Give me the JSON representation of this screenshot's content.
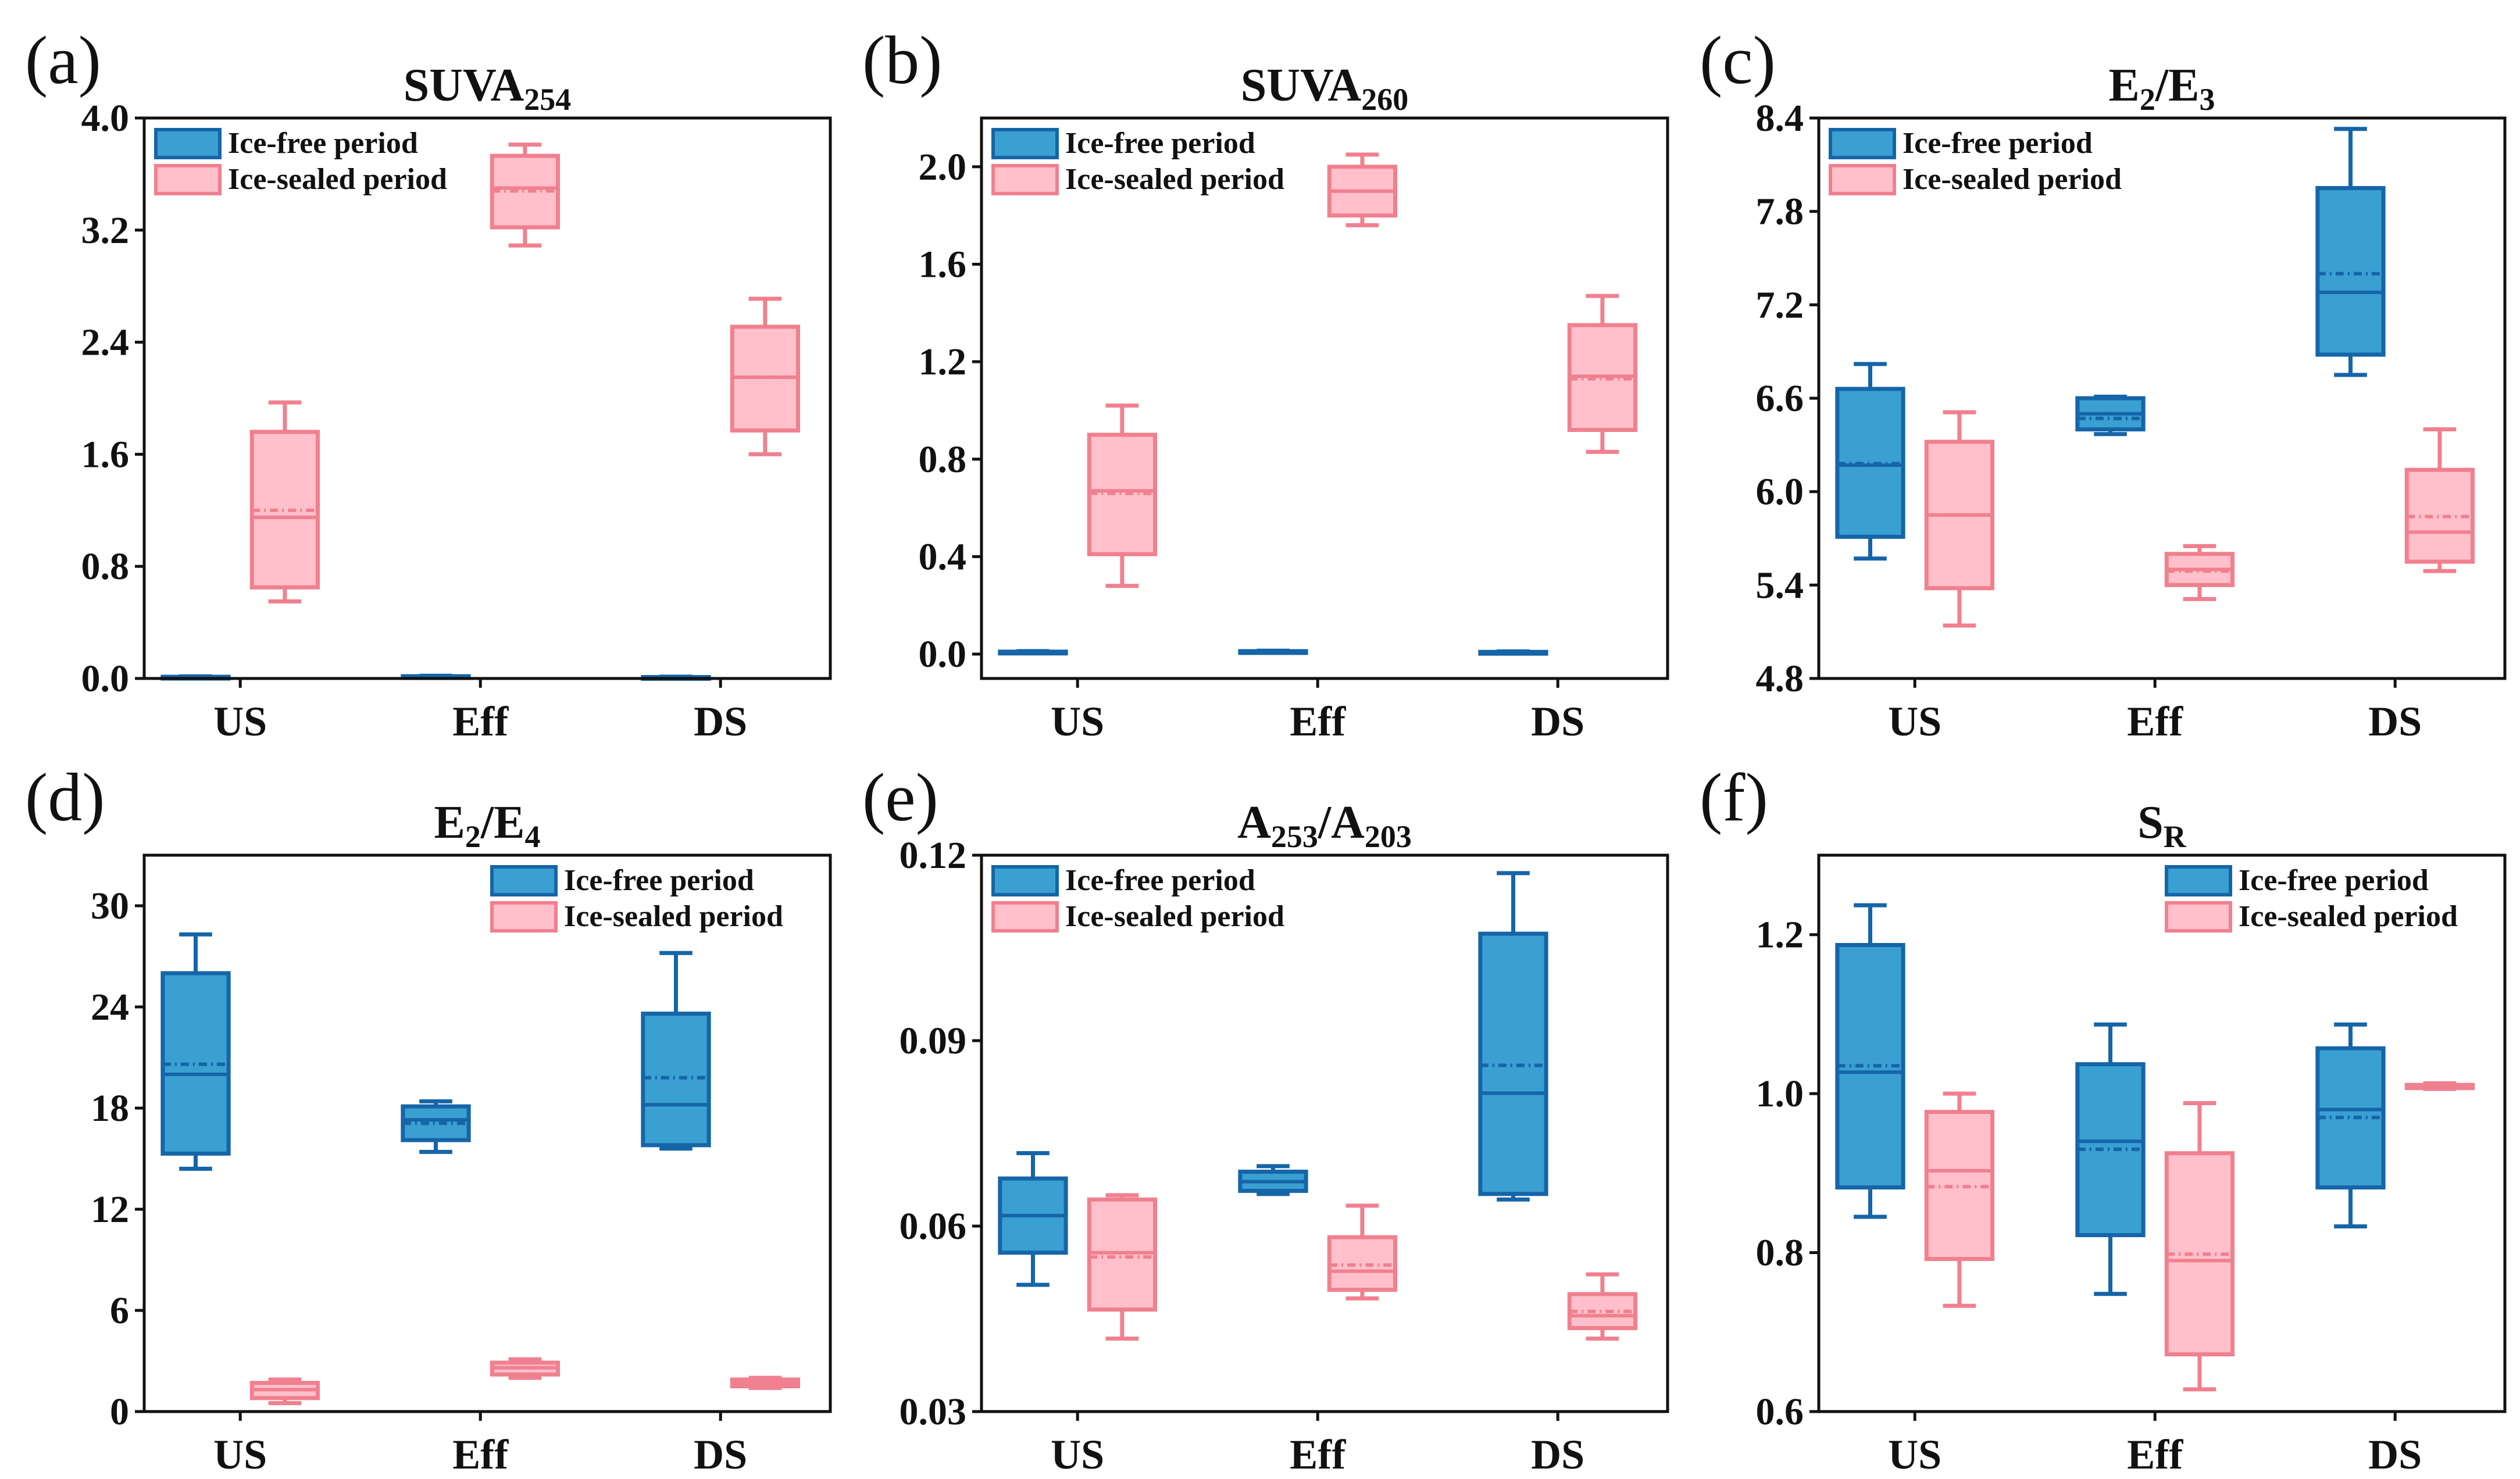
{
  "colors": {
    "ice_free_edge": "#1565a8",
    "ice_free_fill": "#3a9fd1",
    "ice_sealed_edge": "#f0808f",
    "ice_sealed_fill": "#ffc0cb"
  },
  "chart_data": [
    {
      "type": "box",
      "panel": "(a)",
      "title": "SUVA",
      "title_sub": "254",
      "title_sep": "",
      "title_b": "",
      "title_b_sub": "",
      "categories": [
        "US",
        "Eff",
        "DS"
      ],
      "ylim": [
        0,
        4.0
      ],
      "yticks": [
        "0.0",
        "0.8",
        "1.6",
        "2.4",
        "3.2",
        "4.0"
      ],
      "legend_position": "top-left",
      "series": [
        {
          "name": "Ice-free period",
          "boxes": [
            {
              "whislo": 0.005,
              "q1": 0.008,
              "med": 0.01,
              "mean": 0.01,
              "q3": 0.012,
              "whishi": 0.015
            },
            {
              "whislo": 0.008,
              "q1": 0.011,
              "med": 0.013,
              "mean": 0.013,
              "q3": 0.016,
              "whishi": 0.019
            },
            {
              "whislo": 0.004,
              "q1": 0.006,
              "med": 0.008,
              "mean": 0.008,
              "q3": 0.01,
              "whishi": 0.013
            }
          ]
        },
        {
          "name": "Ice-sealed period",
          "boxes": [
            {
              "whislo": 0.55,
              "q1": 0.65,
              "med": 1.15,
              "mean": 1.2,
              "q3": 1.76,
              "whishi": 1.97
            },
            {
              "whislo": 3.09,
              "q1": 3.22,
              "med": 3.5,
              "mean": 3.48,
              "q3": 3.73,
              "whishi": 3.81
            },
            {
              "whislo": 1.6,
              "q1": 1.77,
              "med": 2.15,
              "mean": 2.15,
              "q3": 2.51,
              "whishi": 2.71
            }
          ]
        }
      ]
    },
    {
      "type": "box",
      "panel": "(b)",
      "title": "SUVA",
      "title_sub": "260",
      "title_sep": "",
      "title_b": "",
      "title_b_sub": "",
      "categories": [
        "US",
        "Eff",
        "DS"
      ],
      "ylim": [
        -0.1,
        2.2
      ],
      "yticks": [
        "0.0",
        "0.4",
        "0.8",
        "1.2",
        "1.6",
        "2.0"
      ],
      "legend_position": "top-left",
      "series": [
        {
          "name": "Ice-free period",
          "boxes": [
            {
              "whislo": 0.004,
              "q1": 0.006,
              "med": 0.008,
              "mean": 0.008,
              "q3": 0.01,
              "whishi": 0.012
            },
            {
              "whislo": 0.006,
              "q1": 0.008,
              "med": 0.01,
              "mean": 0.01,
              "q3": 0.012,
              "whishi": 0.014
            },
            {
              "whislo": 0.003,
              "q1": 0.005,
              "med": 0.007,
              "mean": 0.007,
              "q3": 0.009,
              "whishi": 0.011
            }
          ]
        },
        {
          "name": "Ice-sealed period",
          "boxes": [
            {
              "whislo": 0.28,
              "q1": 0.41,
              "med": 0.67,
              "mean": 0.66,
              "q3": 0.9,
              "whishi": 1.02
            },
            {
              "whislo": 1.76,
              "q1": 1.8,
              "med": 1.9,
              "mean": 1.9,
              "q3": 2.0,
              "whishi": 2.05
            },
            {
              "whislo": 0.83,
              "q1": 0.92,
              "med": 1.14,
              "mean": 1.13,
              "q3": 1.35,
              "whishi": 1.47
            }
          ]
        }
      ]
    },
    {
      "type": "box",
      "panel": "(c)",
      "title": "E",
      "title_sub": "2",
      "title_sep": "/",
      "title_b": "E",
      "title_b_sub": "3",
      "categories": [
        "US",
        "Eff",
        "DS"
      ],
      "ylim": [
        4.8,
        8.4
      ],
      "yticks": [
        "4.8",
        "5.4",
        "6.0",
        "6.6",
        "7.2",
        "7.8",
        "8.4"
      ],
      "legend_position": "top-left",
      "series": [
        {
          "name": "Ice-free period",
          "boxes": [
            {
              "whislo": 5.57,
              "q1": 5.71,
              "med": 6.17,
              "mean": 6.18,
              "q3": 6.66,
              "whishi": 6.82
            },
            {
              "whislo": 6.37,
              "q1": 6.4,
              "med": 6.5,
              "mean": 6.47,
              "q3": 6.6,
              "whishi": 6.61
            },
            {
              "whislo": 6.75,
              "q1": 6.88,
              "med": 7.28,
              "mean": 7.4,
              "q3": 7.95,
              "whishi": 8.33
            }
          ]
        },
        {
          "name": "Ice-sealed period",
          "boxes": [
            {
              "whislo": 5.14,
              "q1": 5.38,
              "med": 5.85,
              "mean": 5.85,
              "q3": 6.32,
              "whishi": 6.51
            },
            {
              "whislo": 5.31,
              "q1": 5.4,
              "med": 5.5,
              "mean": 5.49,
              "q3": 5.6,
              "whishi": 5.65
            },
            {
              "whislo": 5.49,
              "q1": 5.55,
              "med": 5.74,
              "mean": 5.84,
              "q3": 6.14,
              "whishi": 6.4
            }
          ]
        }
      ]
    },
    {
      "type": "box",
      "panel": "(d)",
      "title": "E",
      "title_sub": "2",
      "title_sep": "/",
      "title_b": "E",
      "title_b_sub": "4",
      "categories": [
        "US",
        "Eff",
        "DS"
      ],
      "ylim": [
        0,
        33
      ],
      "yticks": [
        "0",
        "6",
        "12",
        "18",
        "24",
        "30"
      ],
      "legend_position": "top-right",
      "series": [
        {
          "name": "Ice-free period",
          "boxes": [
            {
              "whislo": 14.4,
              "q1": 15.3,
              "med": 20.0,
              "mean": 20.6,
              "q3": 26.0,
              "whishi": 28.3
            },
            {
              "whislo": 15.4,
              "q1": 16.1,
              "med": 17.3,
              "mean": 17.1,
              "q3": 18.1,
              "whishi": 18.4
            },
            {
              "whislo": 15.6,
              "q1": 15.8,
              "med": 18.2,
              "mean": 19.8,
              "q3": 23.6,
              "whishi": 27.2
            }
          ]
        },
        {
          "name": "Ice-sealed period",
          "boxes": [
            {
              "whislo": 0.5,
              "q1": 0.8,
              "med": 1.3,
              "mean": 1.3,
              "q3": 1.7,
              "whishi": 1.9
            },
            {
              "whislo": 2.0,
              "q1": 2.2,
              "med": 2.6,
              "mean": 2.6,
              "q3": 2.9,
              "whishi": 3.1
            },
            {
              "whislo": 1.4,
              "q1": 1.5,
              "med": 1.7,
              "mean": 1.7,
              "q3": 1.9,
              "whishi": 2.0
            }
          ]
        }
      ]
    },
    {
      "type": "box",
      "panel": "(e)",
      "title": "A",
      "title_sub": "253",
      "title_sep": "/",
      "title_b": "A",
      "title_b_sub": "203",
      "categories": [
        "US",
        "Eff",
        "DS"
      ],
      "ylim": [
        0.03,
        0.12
      ],
      "yticks": [
        "0.03",
        "0.06",
        "0.09",
        "0.12"
      ],
      "legend_position": "top-left",
      "series": [
        {
          "name": "Ice-free period",
          "boxes": [
            {
              "whislo": 0.0505,
              "q1": 0.0557,
              "med": 0.0617,
              "mean": 0.0617,
              "q3": 0.0677,
              "whishi": 0.0718
            },
            {
              "whislo": 0.0652,
              "q1": 0.0657,
              "med": 0.0672,
              "mean": 0.0672,
              "q3": 0.0688,
              "whishi": 0.0697
            },
            {
              "whislo": 0.0643,
              "q1": 0.0652,
              "med": 0.0815,
              "mean": 0.086,
              "q3": 0.1073,
              "whishi": 0.1171
            }
          ]
        },
        {
          "name": "Ice-sealed period",
          "boxes": [
            {
              "whislo": 0.0418,
              "q1": 0.0465,
              "med": 0.0557,
              "mean": 0.055,
              "q3": 0.0643,
              "whishi": 0.065
            },
            {
              "whislo": 0.0483,
              "q1": 0.0497,
              "med": 0.0527,
              "mean": 0.0537,
              "q3": 0.0582,
              "whishi": 0.0633
            },
            {
              "whislo": 0.0418,
              "q1": 0.0435,
              "med": 0.0455,
              "mean": 0.0462,
              "q3": 0.049,
              "whishi": 0.0522
            }
          ]
        }
      ]
    },
    {
      "type": "box",
      "panel": "(f)",
      "title": "S",
      "title_sub": "R",
      "title_sep": "",
      "title_b": "",
      "title_b_sub": "",
      "categories": [
        "US",
        "Eff",
        "DS"
      ],
      "ylim": [
        0.6,
        1.3
      ],
      "yticks": [
        "0.6",
        "0.8",
        "1.0",
        "1.2"
      ],
      "legend_position": "top-right",
      "series": [
        {
          "name": "Ice-free period",
          "boxes": [
            {
              "whislo": 0.845,
              "q1": 0.882,
              "med": 1.027,
              "mean": 1.035,
              "q3": 1.187,
              "whishi": 1.237
            },
            {
              "whislo": 0.748,
              "q1": 0.822,
              "med": 0.94,
              "mean": 0.93,
              "q3": 1.037,
              "whishi": 1.087
            },
            {
              "whislo": 0.833,
              "q1": 0.882,
              "med": 0.98,
              "mean": 0.97,
              "q3": 1.057,
              "whishi": 1.087
            }
          ]
        },
        {
          "name": "Ice-sealed period",
          "boxes": [
            {
              "whislo": 0.733,
              "q1": 0.792,
              "med": 0.903,
              "mean": 0.883,
              "q3": 0.977,
              "whishi": 1.0
            },
            {
              "whislo": 0.628,
              "q1": 0.672,
              "med": 0.79,
              "mean": 0.798,
              "q3": 0.925,
              "whishi": 0.988
            },
            {
              "whislo": 1.006,
              "q1": 1.007,
              "med": 1.009,
              "mean": 1.009,
              "q3": 1.011,
              "whishi": 1.013
            }
          ]
        }
      ]
    }
  ]
}
